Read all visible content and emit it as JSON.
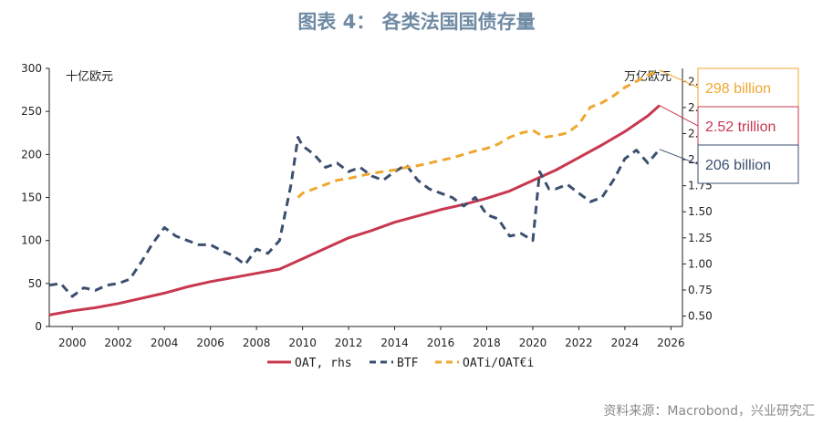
{
  "title": "图表 4： 各类法国国债存量",
  "source": "资料来源：Macrobond，兴业研究汇",
  "colors": {
    "oat": "#c8384f",
    "btf": "#3b4f6e",
    "oati": "#f0a730",
    "axis": "#222222"
  },
  "chart_data": {
    "type": "line",
    "left_axis": {
      "unit": "十亿欧元",
      "ticks": [
        "0",
        "50",
        "100",
        "150",
        "200",
        "250",
        "300"
      ],
      "range": [
        0,
        300
      ]
    },
    "right_axis": {
      "unit": "万亿欧元",
      "ticks": [
        "0.50",
        "0.75",
        "1.00",
        "1.25",
        "1.50",
        "1.75",
        "2.00",
        "2.25",
        "2.50",
        "2.75"
      ],
      "range": [
        0.4,
        2.875
      ]
    },
    "x_ticks": [
      "2000",
      "2002",
      "2004",
      "2006",
      "2008",
      "2010",
      "2012",
      "2014",
      "2016",
      "2018",
      "2020",
      "2022",
      "2024",
      "2026"
    ],
    "x_range": [
      1999,
      2026.5
    ],
    "series": [
      {
        "name": "OAT, rhs",
        "axis": "right",
        "style": "solid",
        "points": [
          [
            1999,
            0.51
          ],
          [
            2000,
            0.55
          ],
          [
            2001,
            0.58
          ],
          [
            2002,
            0.62
          ],
          [
            2003,
            0.67
          ],
          [
            2004,
            0.72
          ],
          [
            2005,
            0.78
          ],
          [
            2006,
            0.83
          ],
          [
            2007,
            0.87
          ],
          [
            2008,
            0.91
          ],
          [
            2009,
            0.95
          ],
          [
            2010,
            1.05
          ],
          [
            2011,
            1.15
          ],
          [
            2012,
            1.25
          ],
          [
            2013,
            1.32
          ],
          [
            2014,
            1.4
          ],
          [
            2015,
            1.46
          ],
          [
            2016,
            1.52
          ],
          [
            2017,
            1.57
          ],
          [
            2018,
            1.63
          ],
          [
            2019,
            1.7
          ],
          [
            2020,
            1.8
          ],
          [
            2021,
            1.9
          ],
          [
            2022,
            2.02
          ],
          [
            2023,
            2.14
          ],
          [
            2024,
            2.27
          ],
          [
            2025,
            2.42
          ],
          [
            2025.5,
            2.52
          ]
        ]
      },
      {
        "name": "BTF",
        "axis": "left",
        "style": "dashed",
        "points": [
          [
            1999,
            48
          ],
          [
            1999.5,
            50
          ],
          [
            2000,
            35
          ],
          [
            2000.5,
            45
          ],
          [
            2001,
            42
          ],
          [
            2001.5,
            48
          ],
          [
            2002,
            50
          ],
          [
            2002.5,
            55
          ],
          [
            2003,
            75
          ],
          [
            2003.5,
            97
          ],
          [
            2004,
            115
          ],
          [
            2004.5,
            105
          ],
          [
            2005,
            100
          ],
          [
            2005.5,
            95
          ],
          [
            2006,
            95
          ],
          [
            2006.5,
            88
          ],
          [
            2007,
            82
          ],
          [
            2007.5,
            72
          ],
          [
            2008,
            90
          ],
          [
            2008.5,
            85
          ],
          [
            2009,
            100
          ],
          [
            2009.5,
            165
          ],
          [
            2009.8,
            220
          ],
          [
            2010,
            210
          ],
          [
            2010.5,
            200
          ],
          [
            2011,
            185
          ],
          [
            2011.5,
            190
          ],
          [
            2012,
            180
          ],
          [
            2012.5,
            185
          ],
          [
            2013,
            175
          ],
          [
            2013.5,
            170
          ],
          [
            2014,
            180
          ],
          [
            2014.5,
            188
          ],
          [
            2015,
            170
          ],
          [
            2015.5,
            160
          ],
          [
            2016,
            155
          ],
          [
            2016.5,
            150
          ],
          [
            2017,
            140
          ],
          [
            2017.5,
            150
          ],
          [
            2018,
            130
          ],
          [
            2018.5,
            125
          ],
          [
            2019,
            105
          ],
          [
            2019.5,
            108
          ],
          [
            2020,
            100
          ],
          [
            2020.3,
            180
          ],
          [
            2020.7,
            160
          ],
          [
            2021,
            160
          ],
          [
            2021.5,
            165
          ],
          [
            2022,
            155
          ],
          [
            2022.5,
            145
          ],
          [
            2023,
            150
          ],
          [
            2023.5,
            170
          ],
          [
            2024,
            195
          ],
          [
            2024.5,
            205
          ],
          [
            2025,
            190
          ],
          [
            2025.5,
            206
          ]
        ]
      },
      {
        "name": "OATi/OAT€i",
        "axis": "left",
        "style": "dashed",
        "points": [
          [
            2009.8,
            150
          ],
          [
            2010,
            155
          ],
          [
            2010.5,
            160
          ],
          [
            2011,
            165
          ],
          [
            2011.5,
            170
          ],
          [
            2012,
            172
          ],
          [
            2012.5,
            175
          ],
          [
            2013,
            178
          ],
          [
            2013.5,
            180
          ],
          [
            2014,
            182
          ],
          [
            2014.5,
            185
          ],
          [
            2015,
            187
          ],
          [
            2015.5,
            190
          ],
          [
            2016,
            193
          ],
          [
            2016.5,
            196
          ],
          [
            2017,
            200
          ],
          [
            2017.5,
            204
          ],
          [
            2018,
            207
          ],
          [
            2018.5,
            212
          ],
          [
            2019,
            220
          ],
          [
            2019.5,
            225
          ],
          [
            2020,
            228
          ],
          [
            2020.5,
            220
          ],
          [
            2021,
            222
          ],
          [
            2021.5,
            225
          ],
          [
            2022,
            235
          ],
          [
            2022.5,
            255
          ],
          [
            2023,
            260
          ],
          [
            2023.5,
            268
          ],
          [
            2024,
            278
          ],
          [
            2024.5,
            285
          ],
          [
            2025,
            292
          ],
          [
            2025.5,
            298
          ]
        ]
      }
    ],
    "callouts": [
      {
        "label": "298 billion",
        "series": "OATi/OAT€i"
      },
      {
        "label": "2.52 trillion",
        "series": "OAT, rhs"
      },
      {
        "label": "206 billion",
        "series": "BTF"
      }
    ]
  }
}
